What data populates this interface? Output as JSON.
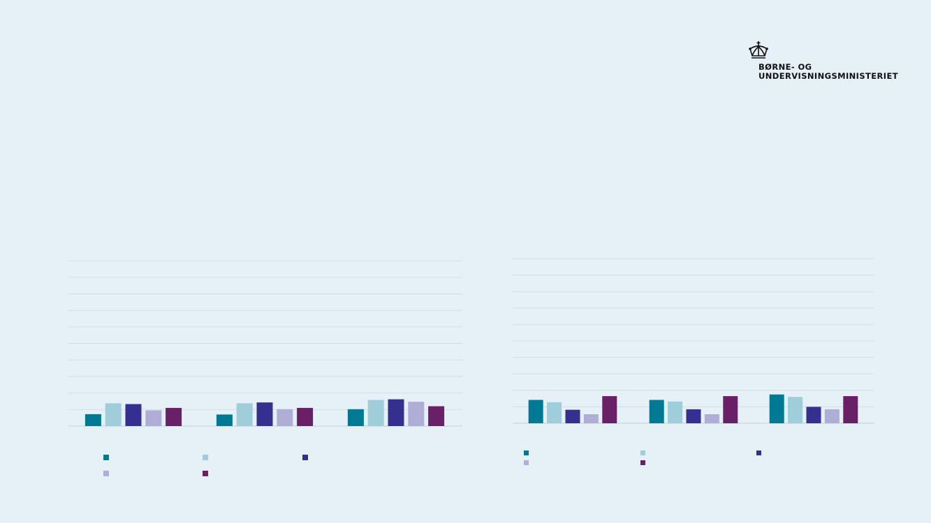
{
  "logo": {
    "icon": "crown-icon",
    "line1": "BØRNE- OG",
    "line2": "UNDERVISNINGSMINISTERIET"
  },
  "chart_data": [
    {
      "type": "bar",
      "ylim": [
        0,
        10
      ],
      "grid": true,
      "legend_position": "bottom",
      "colors": [
        "#007a94",
        "#9fcdd9",
        "#352f8f",
        "#b0aed6",
        "#6a2066"
      ],
      "categories": [
        "",
        "",
        ""
      ],
      "series": [
        {
          "values": [
            0.72,
            0.7,
            1.02
          ]
        },
        {
          "values": [
            1.38,
            1.38,
            1.58
          ]
        },
        {
          "values": [
            1.33,
            1.43,
            1.62
          ]
        },
        {
          "values": [
            0.95,
            1.02,
            1.47
          ]
        },
        {
          "values": [
            1.1,
            1.1,
            1.2
          ]
        }
      ]
    },
    {
      "type": "bar",
      "ylim": [
        0,
        10
      ],
      "grid": true,
      "legend_position": "bottom",
      "colors": [
        "#007a94",
        "#9fcdd9",
        "#352f8f",
        "#b0aed6",
        "#6a2066"
      ],
      "categories": [
        "",
        "",
        ""
      ],
      "series": [
        {
          "values": [
            1.42,
            1.42,
            1.75
          ]
        },
        {
          "values": [
            1.28,
            1.32,
            1.6
          ]
        },
        {
          "values": [
            0.82,
            0.85,
            1.0
          ]
        },
        {
          "values": [
            0.55,
            0.55,
            0.85
          ]
        },
        {
          "values": [
            1.65,
            1.65,
            1.65
          ]
        }
      ]
    }
  ]
}
